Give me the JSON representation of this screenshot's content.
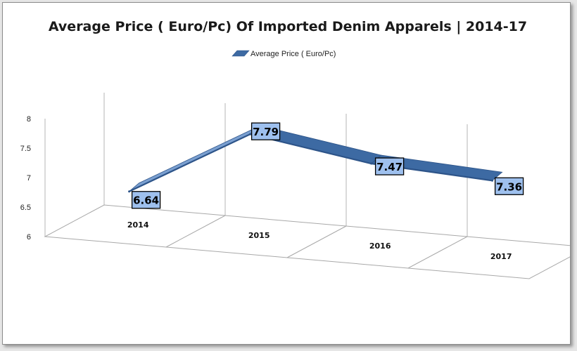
{
  "chart_data": {
    "type": "line",
    "title": "Average Price ( Euro/Pc) Of Imported Denim Apparels | 2014-17",
    "categories": [
      "2014",
      "2015",
      "2016",
      "2017"
    ],
    "series": [
      {
        "name": "Average Price ( Euro/Pc)",
        "values": [
          6.64,
          7.79,
          7.47,
          7.36
        ]
      }
    ],
    "data_labels": [
      "6.64",
      "7.79",
      "7.47",
      "7.36"
    ],
    "ylim": [
      6,
      8
    ],
    "yticks": [
      "6",
      "6.5",
      "7",
      "7.5",
      "8"
    ],
    "ytick_values": [
      6,
      6.5,
      7,
      7.5,
      8
    ],
    "xlabel": "",
    "ylabel": "",
    "legend_position": "top",
    "grid": true,
    "projection": "3d",
    "colors": {
      "series": "#3d6aa3",
      "series_dark": "#2d5489",
      "label_fill": "#9ec0ee",
      "grid": "#b5b5b5"
    }
  }
}
